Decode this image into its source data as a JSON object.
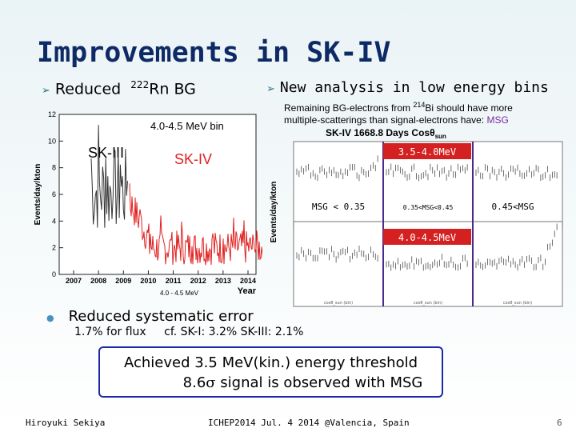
{
  "slide": {
    "title": "Improvements in SK-IV",
    "left_bullet": {
      "text": "Reduced",
      "superscript": "222",
      "element": "Rn BG"
    },
    "right_bullet": "New analysis in low energy bins",
    "right_note": {
      "line1_pre": "Remaining BG-electrons from ",
      "line1_sup": "214",
      "line1_post": "Bi should have more",
      "line2": "multiple-scatterings than signal-electrons have: ",
      "line2_msg": "MSG"
    },
    "systematic": {
      "heading": "Reduced systematic error",
      "detail_flux": "1.7% for flux",
      "detail_cf": "cf.  SK-I: 3.2%  SK-III: 2.1%"
    },
    "achieved": {
      "line1": "Achieved 3.5 MeV(kin.) energy threshold",
      "line2_num": "8.6",
      "line2_sigma": "σ",
      "line2_rest": " signal is observed with MSG"
    },
    "footer": {
      "author": "Hiroyuki Sekiya",
      "event": "ICHEP2014  Jul. 4 2014  @Valencia, Spain",
      "page": "6"
    }
  },
  "left_plot": {
    "ylabel": "Events/day/kton",
    "range_label": "4.0-4.5 MeV bin",
    "sk3_label": "SK-III",
    "sk4_label": "SK-IV",
    "xlabel": "Year",
    "xlabel_sub": "4.0 - 4.5 MeV",
    "yticks": [
      "0",
      "2",
      "4",
      "6",
      "8",
      "10",
      "12"
    ],
    "xticks": [
      "2007",
      "2008",
      "2009",
      "2010",
      "2011",
      "2012",
      "2013",
      "2014"
    ],
    "colors": {
      "sk3": "#333333",
      "sk4": "#e02020",
      "text_sk4": "#e02020"
    }
  },
  "right_plot": {
    "header": "SK-IV 1668.8 Days Cos",
    "header_theta": "θ",
    "header_sub": "sun",
    "ylabel": "Events/day/kton",
    "top_energy": "3.5-4.0MeV",
    "bottom_energy": "4.0-4.5MeV",
    "msg_bins": [
      "MSG < 0.35",
      "0.35<MSG<0.45",
      "0.45<MSG"
    ],
    "axis_note": "cosθ_sun (bin)",
    "colors": {
      "label_fill": "#d42020",
      "label_text": "#ffffff",
      "divider": "#4a2a8a"
    }
  }
}
